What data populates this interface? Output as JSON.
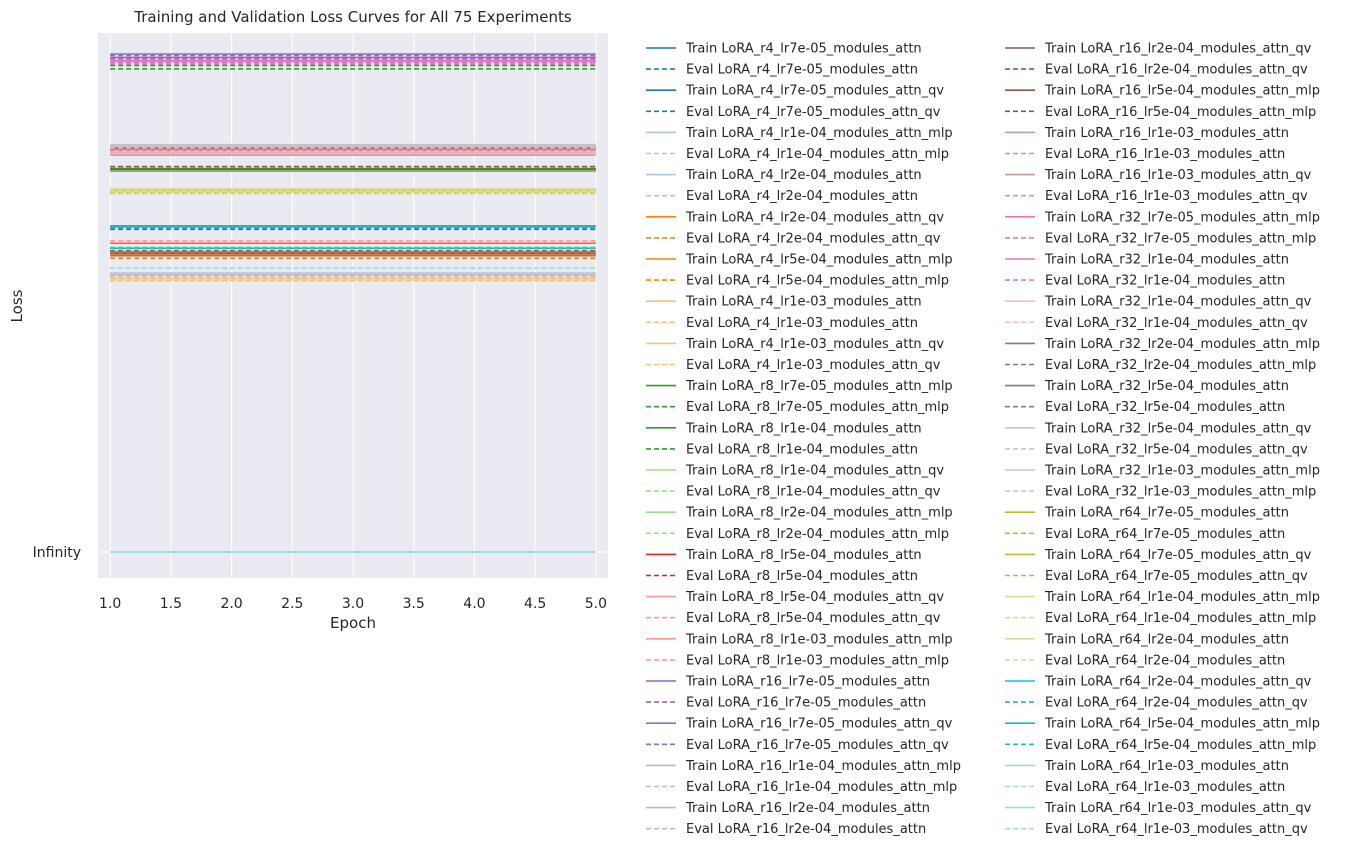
{
  "chart_data": {
    "type": "line",
    "title": "Training and Validation Loss Curves for All 75 Experiments",
    "xlabel": "Epoch",
    "ylabel": "Loss",
    "x": [
      1,
      2,
      3,
      4,
      5
    ],
    "x_ticks": [
      "1.0",
      "1.5",
      "2.0",
      "2.5",
      "3.0",
      "3.5",
      "4.0",
      "4.5",
      "5.0"
    ],
    "y_tick_labels": [
      "Infinity"
    ],
    "grid": true,
    "legend_placement": "right, outside plot, two columns",
    "series": [
      {
        "name": "Train LoRA_r4_lr7e-05_modules_attn",
        "color": "#1f77b4",
        "dash": false,
        "level": 0.62
      },
      {
        "name": "Eval LoRA_r4_lr7e-05_modules_attn",
        "color": "#1f77b4",
        "dash": true,
        "level": 0.648
      },
      {
        "name": "Train LoRA_r4_lr7e-05_modules_attn_qv",
        "color": "#1f77b4",
        "dash": false,
        "level": 0.598
      },
      {
        "name": "Eval LoRA_r4_lr7e-05_modules_attn_qv",
        "color": "#1f77b4",
        "dash": true,
        "level": 0.61
      },
      {
        "name": "Train LoRA_r4_lr1e-04_modules_attn_mlp",
        "color": "#aec7e8",
        "dash": false,
        "level": 0.81
      },
      {
        "name": "Eval LoRA_r4_lr1e-04_modules_attn_mlp",
        "color": "#aec7e8",
        "dash": true,
        "level": 0.815
      },
      {
        "name": "Train LoRA_r4_lr2e-04_modules_attn",
        "color": "#aec7e8",
        "dash": false,
        "level": 0.556
      },
      {
        "name": "Eval LoRA_r4_lr2e-04_modules_attn",
        "color": "#aec7e8",
        "dash": true,
        "level": 0.55
      },
      {
        "name": "Train LoRA_r4_lr2e-04_modules_attn_qv",
        "color": "#ff7f0e",
        "dash": false,
        "level": 0.603
      },
      {
        "name": "Eval LoRA_r4_lr2e-04_modules_attn_qv",
        "color": "#ff7f0e",
        "dash": true,
        "level": 0.61
      },
      {
        "name": "Train LoRA_r4_lr5e-04_modules_attn_mlp",
        "color": "#ff7f0e",
        "dash": false,
        "level": 0.598
      },
      {
        "name": "Eval LoRA_r4_lr5e-04_modules_attn_mlp",
        "color": "#ff7f0e",
        "dash": true,
        "level": 0.59
      },
      {
        "name": "Train LoRA_r4_lr1e-03_modules_attn",
        "color": "#ffbb78",
        "dash": false,
        "level": 0.8
      },
      {
        "name": "Eval LoRA_r4_lr1e-03_modules_attn",
        "color": "#ffbb78",
        "dash": true,
        "level": 0.57
      },
      {
        "name": "Train LoRA_r4_lr1e-03_modules_attn_qv",
        "color": "#ffbb78",
        "dash": false,
        "level": 0.549
      },
      {
        "name": "Eval LoRA_r4_lr1e-03_modules_attn_qv",
        "color": "#ffbb78",
        "dash": true,
        "level": 0.545
      },
      {
        "name": "Train LoRA_r8_lr7e-05_modules_attn_mlp",
        "color": "#2ca02c",
        "dash": false,
        "level": 0.77
      },
      {
        "name": "Eval LoRA_r8_lr7e-05_modules_attn_mlp",
        "color": "#2ca02c",
        "dash": true,
        "level": 0.977
      },
      {
        "name": "Train LoRA_r8_lr1e-04_modules_attn",
        "color": "#2ca02c",
        "dash": false,
        "level": 0.765
      },
      {
        "name": "Eval LoRA_r8_lr1e-04_modules_attn",
        "color": "#2ca02c",
        "dash": true,
        "level": 0.97
      },
      {
        "name": "Train LoRA_r8_lr1e-04_modules_attn_qv",
        "color": "#98df8a",
        "dash": false,
        "level": 0.728
      },
      {
        "name": "Eval LoRA_r8_lr1e-04_modules_attn_qv",
        "color": "#98df8a",
        "dash": true,
        "level": 0.724
      },
      {
        "name": "Train LoRA_r8_lr2e-04_modules_attn_mlp",
        "color": "#98df8a",
        "dash": false,
        "level": 0.766
      },
      {
        "name": "Eval LoRA_r8_lr2e-04_modules_attn_mlp",
        "color": "#98df8a",
        "dash": true,
        "level": 0.612
      },
      {
        "name": "Train LoRA_r8_lr5e-04_modules_attn",
        "color": "#d62728",
        "dash": false,
        "level": 0.811
      },
      {
        "name": "Eval LoRA_r8_lr5e-04_modules_attn",
        "color": "#d62728",
        "dash": true,
        "level": 0.806
      },
      {
        "name": "Train LoRA_r8_lr5e-04_modules_attn_qv",
        "color": "#ff9896",
        "dash": false,
        "level": 0.621
      },
      {
        "name": "Eval LoRA_r8_lr5e-04_modules_attn_qv",
        "color": "#ff9896",
        "dash": true,
        "level": 0.625
      },
      {
        "name": "Train LoRA_r8_lr1e-03_modules_attn_mlp",
        "color": "#ff9896",
        "dash": false,
        "level": 0.803
      },
      {
        "name": "Eval LoRA_r8_lr1e-03_modules_attn_mlp",
        "color": "#ff9896",
        "dash": true,
        "level": 0.799
      },
      {
        "name": "Train LoRA_r16_lr7e-05_modules_attn",
        "color": "#9467bd",
        "dash": false,
        "level": 1.0
      },
      {
        "name": "Eval LoRA_r16_lr7e-05_modules_attn",
        "color": "#9467bd",
        "dash": true,
        "level": 0.997
      },
      {
        "name": "Train LoRA_r16_lr7e-05_modules_attn_qv",
        "color": "#9467bd",
        "dash": false,
        "level": 0.993
      },
      {
        "name": "Eval LoRA_r16_lr7e-05_modules_attn_qv",
        "color": "#9467bd",
        "dash": true,
        "level": 0.99
      },
      {
        "name": "Train LoRA_r16_lr1e-04_modules_attn_mlp",
        "color": "#c5b0d5",
        "dash": false,
        "level": 0.815
      },
      {
        "name": "Eval LoRA_r16_lr1e-04_modules_attn_mlp",
        "color": "#c5b0d5",
        "dash": true,
        "level": 0.81
      },
      {
        "name": "Train LoRA_r16_lr2e-04_modules_attn",
        "color": "#c5b0d5",
        "dash": false,
        "level": 0.56
      },
      {
        "name": "Eval LoRA_r16_lr2e-04_modules_attn",
        "color": "#c5b0d5",
        "dash": true,
        "level": 0.555
      },
      {
        "name": "Train LoRA_r16_lr2e-04_modules_attn_qv",
        "color": "#8c564b",
        "dash": false,
        "level": 0.6
      },
      {
        "name": "Eval LoRA_r16_lr2e-04_modules_attn_qv",
        "color": "#8c564b",
        "dash": true,
        "level": 0.605
      },
      {
        "name": "Train LoRA_r16_lr5e-04_modules_attn_mlp",
        "color": "#8c564b",
        "dash": false,
        "level": 0.768
      },
      {
        "name": "Eval LoRA_r16_lr5e-04_modules_attn_mlp",
        "color": "#8c564b",
        "dash": true,
        "level": 0.774
      },
      {
        "name": "Train LoRA_r16_lr1e-03_modules_attn",
        "color": "#c49c94",
        "dash": false,
        "level": 0.797
      },
      {
        "name": "Eval LoRA_r16_lr1e-03_modules_attn",
        "color": "#c49c94",
        "dash": true,
        "level": 0.802
      },
      {
        "name": "Train LoRA_r16_lr1e-03_modules_attn_qv",
        "color": "#c49c94",
        "dash": false,
        "level": 0.808
      },
      {
        "name": "Eval LoRA_r16_lr1e-03_modules_attn_qv",
        "color": "#c49c94",
        "dash": true,
        "level": 0.812
      },
      {
        "name": "Train LoRA_r32_lr7e-05_modules_attn_mlp",
        "color": "#e377c2",
        "dash": false,
        "level": 0.985
      },
      {
        "name": "Eval LoRA_r32_lr7e-05_modules_attn_mlp",
        "color": "#e377c2",
        "dash": true,
        "level": 0.98
      },
      {
        "name": "Train LoRA_r32_lr1e-04_modules_attn",
        "color": "#e377c2",
        "dash": false,
        "level": 0.987
      },
      {
        "name": "Eval LoRA_r32_lr1e-04_modules_attn",
        "color": "#e377c2",
        "dash": true,
        "level": 0.983
      },
      {
        "name": "Train LoRA_r32_lr1e-04_modules_attn_qv",
        "color": "#f7b6d2",
        "dash": false,
        "level": 0.804
      },
      {
        "name": "Eval LoRA_r32_lr1e-04_modules_attn_qv",
        "color": "#f7b6d2",
        "dash": true,
        "level": 0.8
      },
      {
        "name": "Train LoRA_r32_lr2e-04_modules_attn_mlp",
        "color": "#7f7f7f",
        "dash": false,
        "level": 0.653
      },
      {
        "name": "Eval LoRA_r32_lr2e-04_modules_attn_mlp",
        "color": "#7f7f7f",
        "dash": true,
        "level": 0.6
      },
      {
        "name": "Train LoRA_r32_lr5e-04_modules_attn",
        "color": "#7f7f7f",
        "dash": false,
        "level": 0.595
      },
      {
        "name": "Eval LoRA_r32_lr5e-04_modules_attn",
        "color": "#7f7f7f",
        "dash": true,
        "level": 0.603
      },
      {
        "name": "Train LoRA_r32_lr5e-04_modules_attn_qv",
        "color": "#c7c7c7",
        "dash": false,
        "level": 0.558
      },
      {
        "name": "Eval LoRA_r32_lr5e-04_modules_attn_qv",
        "color": "#c7c7c7",
        "dash": true,
        "level": 0.553
      },
      {
        "name": "Train LoRA_r32_lr1e-03_modules_attn_mlp",
        "color": "#c7c7c7",
        "dash": false,
        "level": 0.818
      },
      {
        "name": "Eval LoRA_r32_lr1e-03_modules_attn_mlp",
        "color": "#c7c7c7",
        "dash": true,
        "level": 0.813
      },
      {
        "name": "Train LoRA_r64_lr7e-05_modules_attn",
        "color": "#bcbd22",
        "dash": false,
        "level": 0.726
      },
      {
        "name": "Eval LoRA_r64_lr7e-05_modules_attn",
        "color": "#bcbd22",
        "dash": true,
        "level": 0.722
      },
      {
        "name": "Train LoRA_r64_lr7e-05_modules_attn_qv",
        "color": "#bcbd22",
        "dash": false,
        "level": 0.724
      },
      {
        "name": "Eval LoRA_r64_lr7e-05_modules_attn_qv",
        "color": "#bcbd22",
        "dash": true,
        "level": 0.72
      },
      {
        "name": "Train LoRA_r64_lr1e-04_modules_attn_mlp",
        "color": "#dbdb8d",
        "dash": false,
        "level": 0.729
      },
      {
        "name": "Eval LoRA_r64_lr1e-04_modules_attn_mlp",
        "color": "#dbdb8d",
        "dash": true,
        "level": 0.726
      },
      {
        "name": "Train LoRA_r64_lr2e-04_modules_attn",
        "color": "#dbdb8d",
        "dash": false,
        "level": 0.724
      },
      {
        "name": "Eval LoRA_r64_lr2e-04_modules_attn",
        "color": "#dbdb8d",
        "dash": true,
        "level": 0.72
      },
      {
        "name": "Train LoRA_r64_lr2e-04_modules_attn_qv",
        "color": "#17becf",
        "dash": false,
        "level": 0.655
      },
      {
        "name": "Eval LoRA_r64_lr2e-04_modules_attn_qv",
        "color": "#17becf",
        "dash": true,
        "level": 0.651
      },
      {
        "name": "Train LoRA_r64_lr5e-04_modules_attn_mlp",
        "color": "#17becf",
        "dash": false,
        "level": 0.61
      },
      {
        "name": "Eval LoRA_r64_lr5e-04_modules_attn_mlp",
        "color": "#17becf",
        "dash": true,
        "level": 0.61
      },
      {
        "name": "Train LoRA_r64_lr1e-03_modules_attn",
        "color": "#9edae5",
        "dash": false,
        "level": 0.0
      },
      {
        "name": "Eval LoRA_r64_lr1e-03_modules_attn",
        "color": "#9edae5",
        "dash": true,
        "level": 0.57
      },
      {
        "name": "Train LoRA_r64_lr1e-03_modules_attn_qv",
        "color": "#9edae5",
        "dash": false,
        "level": 0.0
      },
      {
        "name": "Eval LoRA_r64_lr1e-03_modules_attn_qv",
        "color": "#9edae5",
        "dash": true,
        "level": 0.0
      }
    ]
  }
}
